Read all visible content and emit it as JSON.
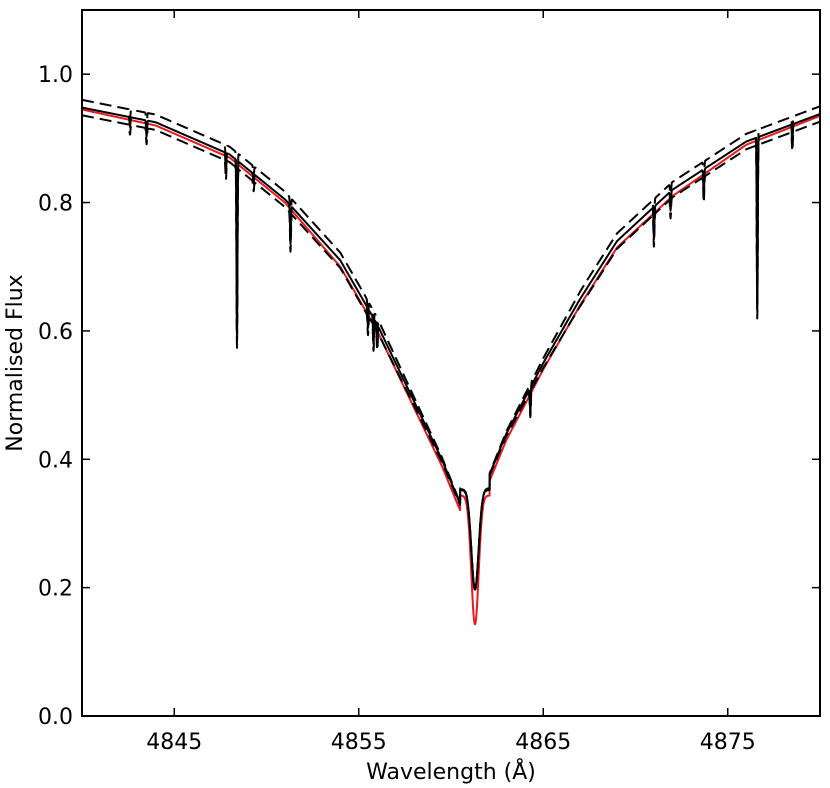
{
  "chart_data": {
    "type": "line",
    "title": "",
    "xlabel": "Wavelength (Å)",
    "ylabel": "Normalised Flux",
    "xlim": [
      4840,
      4880
    ],
    "ylim": [
      0.0,
      1.1
    ],
    "xticks": [
      4845,
      4855,
      4865,
      4875
    ],
    "yticks": [
      0.0,
      0.2,
      0.4,
      0.6,
      0.8,
      1.0
    ],
    "xtick_labels": [
      "4845",
      "4855",
      "4865",
      "4875"
    ],
    "ytick_labels": [
      "0.0",
      "0.2",
      "0.4",
      "0.6",
      "0.8",
      "1.0"
    ],
    "grid": false,
    "legend": "none",
    "profile": {
      "center": 4861.3,
      "x": [
        4840,
        4844,
        4848,
        4851,
        4854,
        4856,
        4858,
        4859.5,
        4860.5,
        4861.3,
        4862,
        4863,
        4865,
        4867,
        4869,
        4872,
        4876,
        4880
      ],
      "model_red": [
        0.945,
        0.92,
        0.87,
        0.8,
        0.7,
        0.6,
        0.48,
        0.39,
        0.32,
        0.143,
        0.36,
        0.43,
        0.54,
        0.64,
        0.73,
        0.81,
        0.89,
        0.935
      ],
      "observed": [
        0.948,
        0.925,
        0.875,
        0.805,
        0.71,
        0.61,
        0.49,
        0.4,
        0.33,
        0.197,
        0.37,
        0.44,
        0.55,
        0.65,
        0.74,
        0.82,
        0.895,
        0.938
      ]
    },
    "absorption_lines": [
      {
        "x": 4842.6,
        "depth": 0.015
      },
      {
        "x": 4843.5,
        "depth": 0.025
      },
      {
        "x": 4847.8,
        "depth": 0.03
      },
      {
        "x": 4848.4,
        "depth": 0.28
      },
      {
        "x": 4849.3,
        "depth": 0.015
      },
      {
        "x": 4851.3,
        "depth": 0.06
      },
      {
        "x": 4855.5,
        "depth": 0.03
      },
      {
        "x": 4855.8,
        "depth": 0.04
      },
      {
        "x": 4856.0,
        "depth": 0.03
      },
      {
        "x": 4864.3,
        "depth": 0.04
      },
      {
        "x": 4871.0,
        "depth": 0.05
      },
      {
        "x": 4871.9,
        "depth": 0.03
      },
      {
        "x": 4873.7,
        "depth": 0.04
      },
      {
        "x": 4876.6,
        "depth": 0.27
      },
      {
        "x": 4878.5,
        "depth": 0.03
      }
    ],
    "series": [
      {
        "style": "solid",
        "color": "#e8191c",
        "source": "model_red",
        "offset": 0.0
      },
      {
        "style": "solid",
        "color": "#000000",
        "source": "observed",
        "offset": 0.0
      },
      {
        "style": "dashed",
        "color": "#000000",
        "source": "observed",
        "offset": 0.012,
        "center_offset": 0.0
      },
      {
        "style": "dashed",
        "color": "#000000",
        "source": "observed",
        "offset": -0.012,
        "center_offset": 0.0
      }
    ]
  }
}
